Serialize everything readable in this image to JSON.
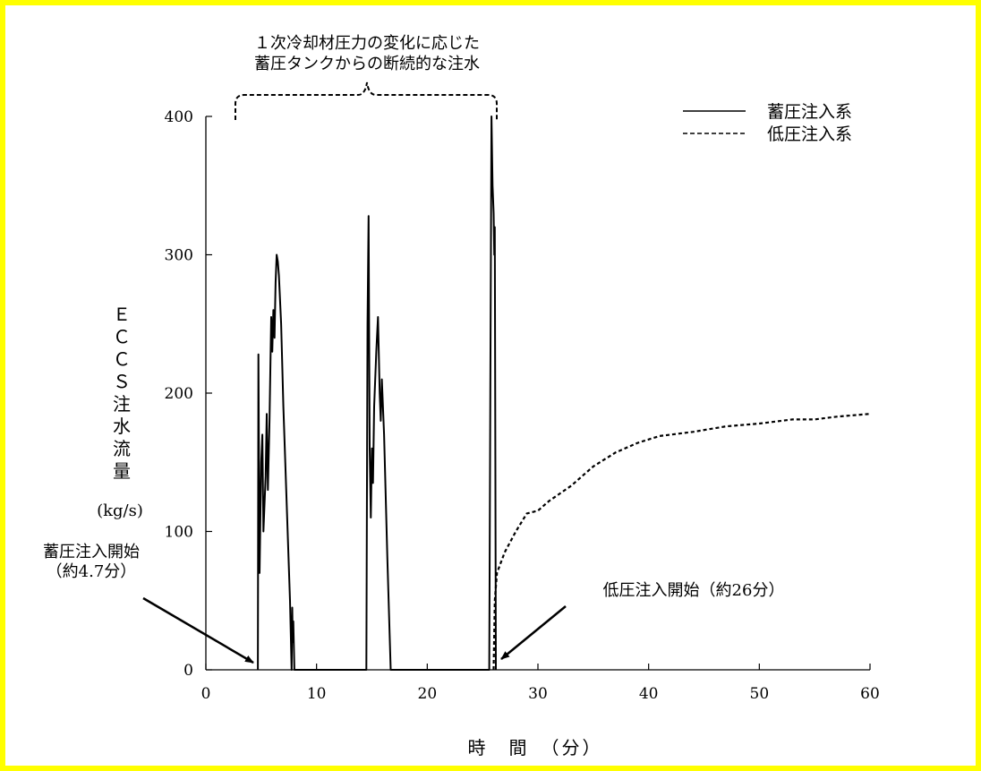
{
  "chart_data": {
    "type": "line",
    "title": "",
    "xlabel": "時　間　（分）",
    "ylabel": "ＥＣＣＳ注水流量",
    "ylabel_unit": "(kg/s)",
    "xlim": [
      0,
      60
    ],
    "ylim": [
      0,
      400
    ],
    "x_ticks": [
      0,
      10,
      20,
      30,
      40,
      50,
      60
    ],
    "y_ticks": [
      0,
      100,
      200,
      300,
      400
    ],
    "grid": false,
    "legend_position": "top-right",
    "series": [
      {
        "name": "蓄圧注入系",
        "style": "solid",
        "points": [
          [
            4.7,
            0
          ],
          [
            4.75,
            228
          ],
          [
            4.85,
            70
          ],
          [
            5.0,
            150
          ],
          [
            5.1,
            170
          ],
          [
            5.2,
            100
          ],
          [
            5.4,
            140
          ],
          [
            5.5,
            185
          ],
          [
            5.6,
            130
          ],
          [
            5.75,
            180
          ],
          [
            5.9,
            255
          ],
          [
            6.0,
            230
          ],
          [
            6.1,
            260
          ],
          [
            6.2,
            240
          ],
          [
            6.3,
            280
          ],
          [
            6.4,
            300
          ],
          [
            6.5,
            295
          ],
          [
            6.6,
            285
          ],
          [
            6.8,
            250
          ],
          [
            7.0,
            190
          ],
          [
            7.3,
            120
          ],
          [
            7.6,
            50
          ],
          [
            7.75,
            0
          ],
          [
            7.8,
            45
          ],
          [
            7.85,
            20
          ],
          [
            7.9,
            35
          ],
          [
            8.0,
            0
          ],
          [
            14.5,
            0
          ],
          [
            14.6,
            250
          ],
          [
            14.7,
            328
          ],
          [
            14.8,
            160
          ],
          [
            14.9,
            110
          ],
          [
            15.0,
            160
          ],
          [
            15.1,
            135
          ],
          [
            15.2,
            190
          ],
          [
            15.4,
            230
          ],
          [
            15.55,
            255
          ],
          [
            15.7,
            200
          ],
          [
            15.8,
            180
          ],
          [
            15.9,
            210
          ],
          [
            16.1,
            170
          ],
          [
            16.4,
            80
          ],
          [
            16.7,
            0
          ],
          [
            25.6,
            0
          ],
          [
            25.7,
            200
          ],
          [
            25.8,
            400
          ],
          [
            25.9,
            350
          ],
          [
            26.0,
            330
          ],
          [
            26.05,
            300
          ],
          [
            26.1,
            320
          ],
          [
            26.2,
            0
          ]
        ]
      },
      {
        "name": "低圧注入系",
        "style": "dashed",
        "points": [
          [
            26.0,
            0
          ],
          [
            26.1,
            50
          ],
          [
            26.3,
            70
          ],
          [
            27.0,
            85
          ],
          [
            28.0,
            100
          ],
          [
            29.0,
            113
          ],
          [
            30.0,
            115
          ],
          [
            31.0,
            122
          ],
          [
            33.0,
            133
          ],
          [
            35.0,
            147
          ],
          [
            37.0,
            157
          ],
          [
            39.0,
            164
          ],
          [
            41.0,
            169
          ],
          [
            44.0,
            172
          ],
          [
            47.0,
            176
          ],
          [
            50.0,
            178
          ],
          [
            53.0,
            181
          ],
          [
            55.0,
            181
          ],
          [
            57.0,
            183
          ],
          [
            60.0,
            185
          ]
        ]
      }
    ],
    "annotations": {
      "brace_text_line1": "１次冷却材圧力の変化に応じた",
      "brace_text_line2": "蓄圧タンクからの断続的な注水",
      "accum_start_line1": "蓄圧注入開始",
      "accum_start_line2": "（約4.7分）",
      "accum_start_time": 4.7,
      "lpi_start": "低圧注入開始（約26分）",
      "lpi_start_time": 26
    }
  }
}
